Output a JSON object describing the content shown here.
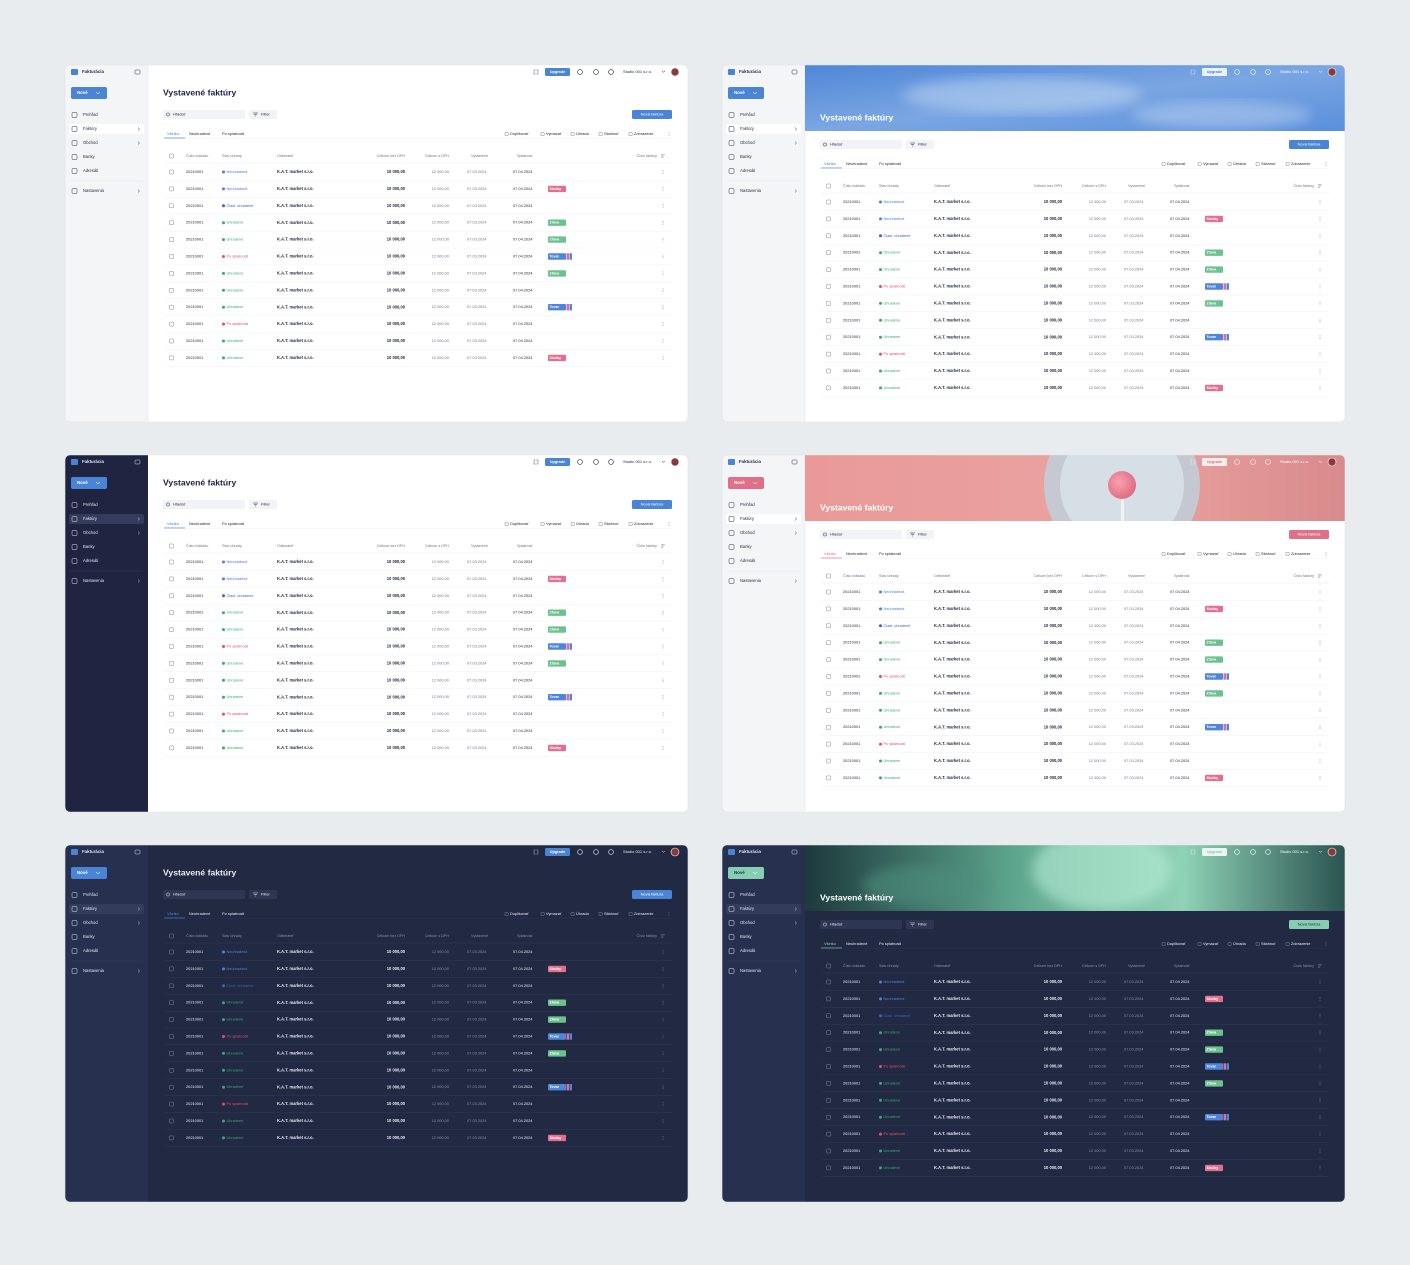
{
  "app": {
    "logo": "Fakturácia",
    "new_button": "Nové",
    "nav": [
      "Prehľad",
      "Faktúry",
      "Obchod",
      "Banky",
      "Adresáti",
      "Nastavenia"
    ],
    "upgrade": "Upgrade",
    "company": "Studio 001 s.r.o.",
    "title": "Vystavené faktúry",
    "search": "Hľadať",
    "filter": "Filter",
    "new_invoice": "Nová faktúra",
    "tabs": [
      "Všetko",
      "Neuhradené",
      "Po splatnosti"
    ],
    "actions": [
      "Duplikovať",
      "Vymazať",
      "Úhrada",
      "Stiahnuť",
      "Zobrazenie"
    ],
    "columns": [
      "Číslo dokladu",
      "Stav úhrady",
      "Odberateľ",
      "Celkom bez DPH",
      "Celkom s DPH",
      "Vystavené",
      "Splatnosť",
      "Číslo faktúry"
    ],
    "rows": [
      {
        "number": "20210001",
        "status": "Neuhradená",
        "customer": "K.A.T. market s.r.o.",
        "net": "10 000,00",
        "gross": "12 000,00",
        "issued": "07.03.2024",
        "due": "07.04.2024"
      },
      {
        "number": "20210001",
        "status": "Neuhradená",
        "customer": "K.A.T. market s.r.o.",
        "net": "10 000,00",
        "gross": "12 000,00",
        "issued": "07.03.2024",
        "due": "07.04.2024",
        "tag": "Služby"
      },
      {
        "number": "20210001",
        "status": "Čiast. uhradené",
        "customer": "K.A.T. market s.r.o.",
        "net": "10 000,00",
        "gross": "12 000,00",
        "issued": "07.03.2024",
        "due": "07.04.2024"
      },
      {
        "number": "20210001",
        "status": "Uhradené",
        "customer": "K.A.T. market s.r.o.",
        "net": "10 000,00",
        "gross": "12 000,00",
        "issued": "07.03.2024",
        "due": "07.04.2024",
        "tag": "Zľava"
      },
      {
        "number": "20210001",
        "status": "Uhradené",
        "customer": "K.A.T. market s.r.o.",
        "net": "10 000,00",
        "gross": "12 000,00",
        "issued": "07.03.2024",
        "due": "07.04.2024",
        "tag": "Zľava"
      },
      {
        "number": "20210001",
        "status": "Po splatnosti",
        "customer": "K.A.T. market s.r.o.",
        "net": "10 000,00",
        "gross": "12 000,00",
        "issued": "07.03.2024",
        "due": "07.04.2024",
        "tag": "Tovar"
      },
      {
        "number": "20210001",
        "status": "Uhradené",
        "customer": "K.A.T. market s.r.o.",
        "net": "10 000,00",
        "gross": "12 000,00",
        "issued": "07.03.2024",
        "due": "07.04.2024",
        "tag": "Zľava"
      },
      {
        "number": "20210001",
        "status": "Uhradené",
        "customer": "K.A.T. market s.r.o.",
        "net": "10 000,00",
        "gross": "12 000,00",
        "issued": "07.03.2024",
        "due": "07.04.2024"
      },
      {
        "number": "20210001",
        "status": "Uhradené",
        "customer": "K.A.T. market s.r.o.",
        "net": "10 000,00",
        "gross": "12 000,00",
        "issued": "07.03.2024",
        "due": "07.04.2024",
        "tag": "Tovar"
      },
      {
        "number": "20210001",
        "status": "Po splatnosti",
        "customer": "K.A.T. market s.r.o.",
        "net": "10 000,00",
        "gross": "12 000,00",
        "issued": "07.03.2024",
        "due": "07.04.2024"
      },
      {
        "number": "20210001",
        "status": "Uhradené",
        "customer": "K.A.T. market s.r.o.",
        "net": "10 000,00",
        "gross": "12 000,00",
        "issued": "07.03.2024",
        "due": "07.04.2024"
      },
      {
        "number": "20210001",
        "status": "Uhradené",
        "customer": "K.A.T. market s.r.o.",
        "net": "10 000,00",
        "gross": "12 000,00",
        "issued": "07.03.2024",
        "due": "07.04.2024",
        "tag": "Služby"
      }
    ]
  }
}
